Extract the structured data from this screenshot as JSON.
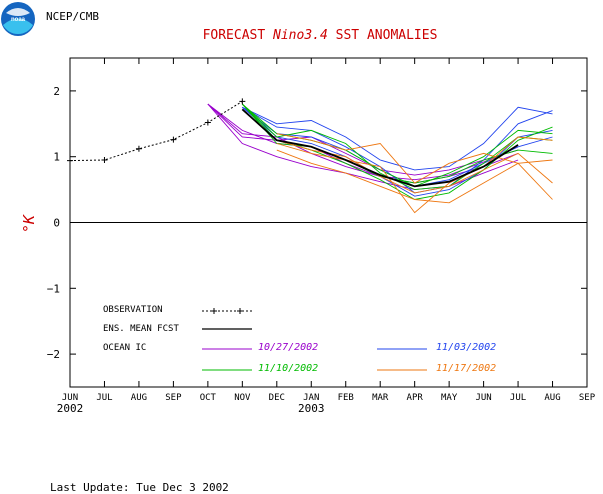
{
  "header": {
    "org_label": "NCEP/CMB",
    "title_prefix": "FORECAST ",
    "title_italic": "Nino3.4",
    "title_suffix": " SST ANOMALIES",
    "title_color": "#cc0000"
  },
  "footer": {
    "last_update": "Last Update: Tue Dec 3 2002"
  },
  "colors": {
    "observation": "#000000",
    "ensemble": "#000000",
    "ic_1027": "#9900cc",
    "ic_1103": "#2244ee",
    "ic_1110": "#00bb00",
    "ic_1117": "#ee7711",
    "ylabel": "#cc0000"
  },
  "chart_data": {
    "type": "line",
    "title": "FORECAST Nino3.4 SST ANOMALIES",
    "ylabel": "°K",
    "ylim": [
      -2.5,
      2.5
    ],
    "yticks": [
      -2,
      -1,
      0,
      1,
      2
    ],
    "x_ticks": [
      "JUN",
      "JUL",
      "AUG",
      "SEP",
      "OCT",
      "NOV",
      "DEC",
      "JAN",
      "FEB",
      "MAR",
      "APR",
      "MAY",
      "JUN",
      "JUL",
      "AUG",
      "SEP"
    ],
    "year_labels": [
      {
        "tick_index": 0,
        "text": "2002"
      },
      {
        "tick_index": 7,
        "text": "2003"
      }
    ],
    "zero_line": true,
    "observation": {
      "name": "OBSERVATION",
      "x": [
        0,
        1,
        2,
        3,
        4,
        5
      ],
      "y": [
        0.94,
        0.95,
        1.12,
        1.26,
        1.52,
        1.84
      ]
    },
    "ensemble_mean": {
      "name": "ENS. MEAN FCST",
      "x": [
        5,
        6,
        7,
        8,
        9,
        10,
        11,
        12,
        13
      ],
      "y": [
        1.72,
        1.25,
        1.15,
        0.95,
        0.72,
        0.55,
        0.62,
        0.85,
        1.18
      ]
    },
    "ic_legend": [
      {
        "label": "10/27/2002",
        "color_key": "ic_1027"
      },
      {
        "label": "11/03/2002",
        "color_key": "ic_1103"
      },
      {
        "label": "11/10/2002",
        "color_key": "ic_1110"
      },
      {
        "label": "11/17/2002",
        "color_key": "ic_1117"
      }
    ],
    "members": [
      {
        "group": "ic_1027",
        "x": [
          4,
          5,
          6,
          7,
          8,
          9,
          10,
          11,
          12,
          13
        ],
        "y": [
          1.8,
          1.4,
          1.2,
          1.15,
          0.9,
          0.7,
          0.6,
          0.7,
          0.85,
          1.05
        ]
      },
      {
        "group": "ic_1027",
        "x": [
          4,
          5,
          6,
          7,
          8,
          9,
          10,
          11,
          12,
          13
        ],
        "y": [
          1.8,
          1.2,
          1.0,
          0.85,
          0.75,
          0.62,
          0.5,
          0.55,
          0.75,
          0.95
        ]
      },
      {
        "group": "ic_1027",
        "x": [
          4,
          5,
          6,
          7,
          8,
          9,
          10,
          11,
          12,
          13
        ],
        "y": [
          1.8,
          1.3,
          1.25,
          1.3,
          1.05,
          0.8,
          0.72,
          0.8,
          0.95,
          1.1
        ]
      },
      {
        "group": "ic_1027",
        "x": [
          4,
          5,
          6,
          7,
          8,
          9,
          10,
          11,
          12,
          13
        ],
        "y": [
          1.8,
          1.35,
          1.3,
          1.05,
          0.85,
          0.7,
          0.65,
          0.72,
          0.92,
          1.15
        ]
      },
      {
        "group": "ic_1103",
        "x": [
          5,
          6,
          7,
          8,
          9,
          10,
          11,
          12,
          13,
          14
        ],
        "y": [
          1.75,
          1.45,
          1.4,
          1.15,
          0.85,
          0.45,
          0.55,
          0.95,
          1.5,
          1.7
        ]
      },
      {
        "group": "ic_1103",
        "x": [
          5,
          6,
          7,
          8,
          9,
          10,
          11,
          12,
          13,
          14
        ],
        "y": [
          1.75,
          1.5,
          1.55,
          1.3,
          0.95,
          0.8,
          0.85,
          1.2,
          1.75,
          1.65
        ]
      },
      {
        "group": "ic_1103",
        "x": [
          5,
          6,
          7,
          8,
          9,
          10,
          11,
          12,
          13,
          14
        ],
        "y": [
          1.75,
          1.3,
          1.2,
          1.0,
          0.7,
          0.4,
          0.5,
          0.8,
          1.3,
          1.4
        ]
      },
      {
        "group": "ic_1103",
        "x": [
          5,
          6,
          7,
          8,
          9,
          10,
          11,
          12,
          13,
          14
        ],
        "y": [
          1.75,
          1.35,
          1.3,
          1.1,
          0.8,
          0.55,
          0.65,
          0.9,
          1.15,
          1.3
        ]
      },
      {
        "group": "ic_1110",
        "x": [
          5,
          6,
          7,
          8,
          9,
          10,
          11,
          12,
          13,
          14
        ],
        "y": [
          1.8,
          1.35,
          1.25,
          1.1,
          0.8,
          0.55,
          0.75,
          1.0,
          1.4,
          1.35
        ]
      },
      {
        "group": "ic_1110",
        "x": [
          5,
          6,
          7,
          8,
          9,
          10,
          11,
          12,
          13,
          14
        ],
        "y": [
          1.8,
          1.25,
          1.1,
          0.9,
          0.65,
          0.35,
          0.45,
          0.8,
          1.25,
          1.45
        ]
      },
      {
        "group": "ic_1110",
        "x": [
          5,
          6,
          7,
          8,
          9,
          10,
          11,
          12,
          13,
          14
        ],
        "y": [
          1.8,
          1.3,
          1.4,
          1.2,
          0.75,
          0.5,
          0.55,
          0.9,
          1.3,
          1.25
        ]
      },
      {
        "group": "ic_1110",
        "x": [
          5,
          6,
          7,
          8,
          9,
          10,
          11,
          12,
          13,
          14
        ],
        "y": [
          1.8,
          1.2,
          1.15,
          0.95,
          0.7,
          0.6,
          0.7,
          0.95,
          1.1,
          1.05
        ]
      },
      {
        "group": "ic_1117",
        "x": [
          6,
          7,
          8,
          9,
          10,
          11,
          12,
          13,
          14
        ],
        "y": [
          1.2,
          1.05,
          0.95,
          0.85,
          0.15,
          0.6,
          0.85,
          1.3,
          1.25
        ]
      },
      {
        "group": "ic_1117",
        "x": [
          6,
          7,
          8,
          9,
          10,
          11,
          12,
          13,
          14
        ],
        "y": [
          1.35,
          1.25,
          1.1,
          1.2,
          0.6,
          0.9,
          1.05,
          0.9,
          0.35
        ]
      },
      {
        "group": "ic_1117",
        "x": [
          6,
          7,
          8,
          9,
          10,
          11,
          12,
          13,
          14
        ],
        "y": [
          1.25,
          1.1,
          1.0,
          0.7,
          0.45,
          0.55,
          0.8,
          1.05,
          0.6
        ]
      },
      {
        "group": "ic_1117",
        "x": [
          6,
          7,
          8,
          9,
          10,
          11,
          12,
          13,
          14
        ],
        "y": [
          1.1,
          0.9,
          0.75,
          0.55,
          0.35,
          0.3,
          0.6,
          0.9,
          0.95
        ]
      }
    ]
  }
}
